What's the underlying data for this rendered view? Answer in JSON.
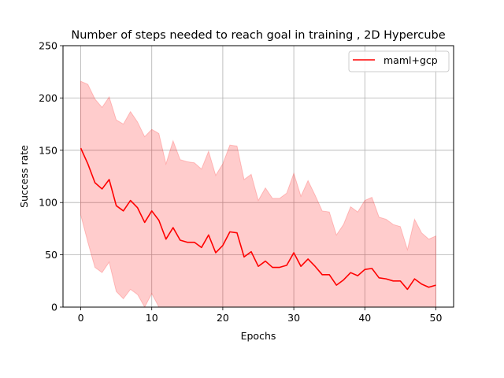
{
  "chart_data": {
    "type": "line",
    "title": "Number of steps needed to reach goal in training , 2D Hypercube",
    "xlabel": "Epochs",
    "ylabel": "Success rate",
    "xlim": [
      -2.5,
      52.5
    ],
    "ylim": [
      0,
      250
    ],
    "xticks": [
      0,
      10,
      20,
      30,
      40,
      50
    ],
    "yticks": [
      0,
      50,
      100,
      150,
      200,
      250
    ],
    "grid": true,
    "legend_position": "top-right",
    "series": [
      {
        "name": "maml+gcp",
        "color": "#ff0000",
        "band_color": "#ff0000",
        "x": [
          0,
          1,
          2,
          3,
          4,
          5,
          6,
          7,
          8,
          9,
          10,
          11,
          12,
          13,
          14,
          15,
          16,
          17,
          18,
          19,
          20,
          21,
          22,
          23,
          24,
          25,
          26,
          27,
          28,
          29,
          30,
          31,
          32,
          33,
          34,
          35,
          36,
          37,
          38,
          39,
          40,
          41,
          42,
          43,
          44,
          45,
          46,
          47,
          48,
          49,
          50
        ],
        "y": [
          152,
          137,
          119,
          113,
          122,
          97,
          92,
          102,
          95,
          81,
          92,
          83,
          65,
          76,
          64,
          62,
          62,
          57,
          69,
          52,
          59,
          72,
          71,
          48,
          53,
          39,
          44,
          38,
          38,
          40,
          52,
          39,
          46,
          39,
          31,
          31,
          21,
          26,
          33,
          30,
          36,
          37,
          28,
          27,
          25,
          25,
          17,
          27,
          22,
          19,
          21
        ],
        "upper": [
          216,
          213,
          199,
          191,
          201,
          179,
          175,
          187,
          177,
          163,
          170,
          166,
          137,
          159,
          141,
          139,
          138,
          132,
          149,
          126,
          137,
          155,
          154,
          122,
          127,
          102,
          114,
          104,
          104,
          109,
          128,
          106,
          121,
          107,
          92,
          91,
          69,
          79,
          96,
          91,
          102,
          105,
          86,
          84,
          79,
          77,
          55,
          84,
          71,
          65,
          68
        ],
        "lower": [
          88,
          62,
          38,
          33,
          43,
          15,
          8,
          17,
          12,
          0,
          13,
          0,
          -7,
          -7,
          -13,
          -15,
          -14,
          -18,
          -11,
          -22,
          -19,
          -11,
          -12,
          -26,
          -21,
          -24,
          -26,
          -28,
          -28,
          -29,
          -24,
          -28,
          -29,
          -29,
          -30,
          -29,
          -27,
          -27,
          -30,
          -31,
          -30,
          -31,
          -30,
          -30,
          -29,
          -27,
          -21,
          -30,
          -27,
          -27,
          -26
        ]
      }
    ]
  }
}
